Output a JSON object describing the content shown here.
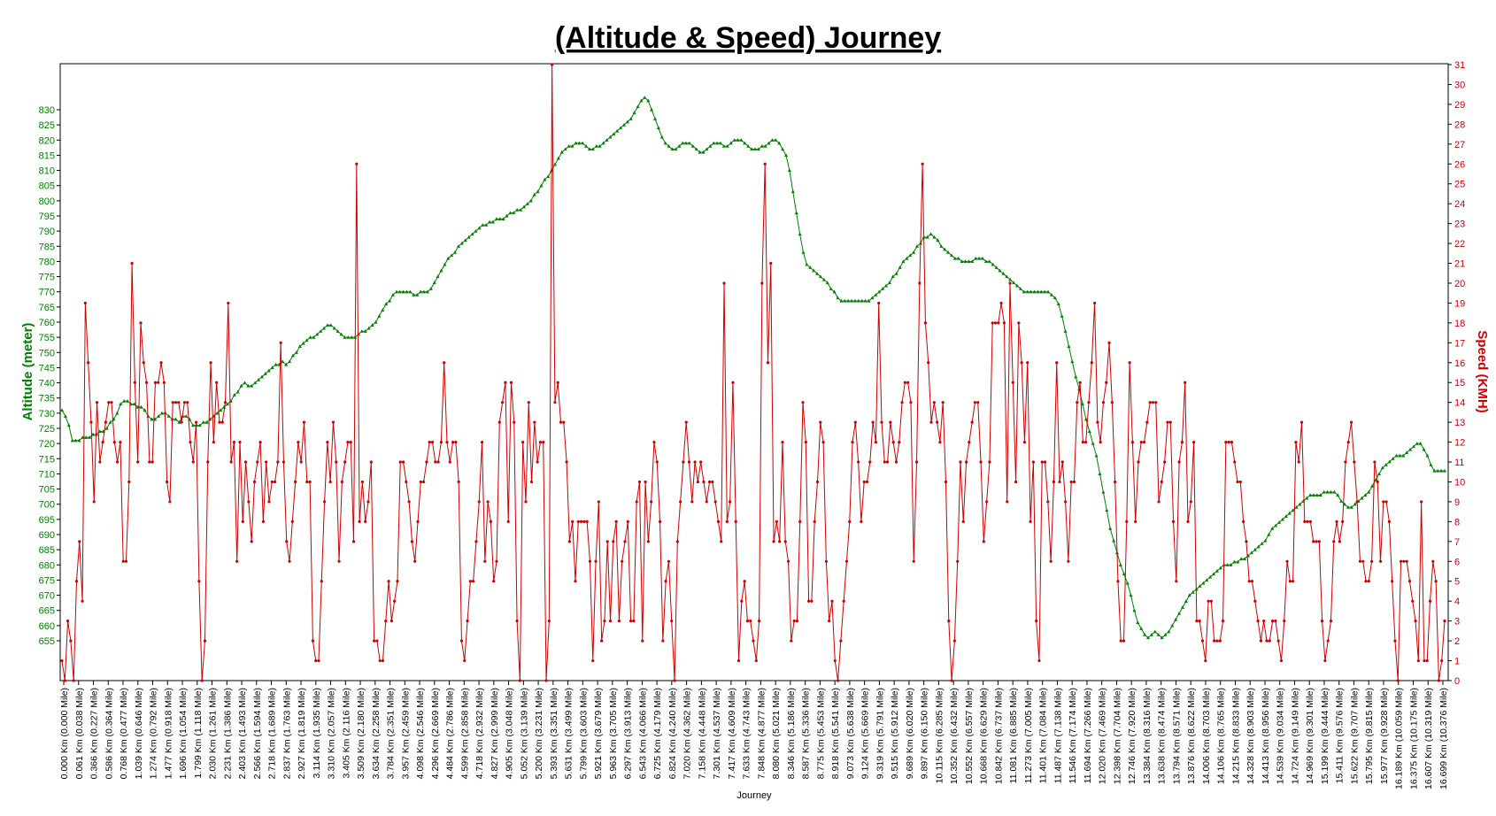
{
  "chart_data": {
    "type": "line",
    "title": "(Altitude & Speed) Journey",
    "xlabel": "Journey",
    "y_left_label": "Altitude (meter)",
    "y_right_label": "Speed (KMH)",
    "y_left_ticks": [
      655,
      660,
      665,
      670,
      675,
      680,
      685,
      690,
      695,
      700,
      705,
      710,
      715,
      720,
      725,
      730,
      735,
      740,
      745,
      750,
      755,
      760,
      765,
      770,
      775,
      780,
      785,
      790,
      795,
      800,
      805,
      810,
      815,
      820,
      825,
      830
    ],
    "y_right_ticks": [
      0,
      1,
      2,
      3,
      4,
      5,
      6,
      7,
      8,
      9,
      10,
      11,
      12,
      13,
      14,
      15,
      16,
      17,
      18,
      19,
      20,
      21,
      22,
      23,
      24,
      25,
      26,
      27,
      28,
      29,
      30,
      31
    ],
    "x_tick_labels": [
      "0.000 Km (0.000 Mile)",
      "0.061 Km (0.038 Mile)",
      "0.366 Km (0.227 Mile)",
      "0.586 Km (0.364 Mile)",
      "0.768 Km (0.477 Mile)",
      "1.039 Km (0.646 Mile)",
      "1.274 Km (0.792 Mile)",
      "1.477 Km (0.918 Mile)",
      "1.696 Km (1.054 Mile)",
      "1.799 Km (1.118 Mile)",
      "2.030 Km (1.261 Mile)",
      "2.231 Km (1.386 Mile)",
      "2.403 Km (1.493 Mile)",
      "2.566 Km (1.594 Mile)",
      "2.718 Km (1.689 Mile)",
      "2.837 Km (1.763 Mile)",
      "2.927 Km (1.819 Mile)",
      "3.114 Km (1.935 Mile)",
      "3.310 Km (2.057 Mile)",
      "3.405 Km (2.116 Mile)",
      "3.509 Km (2.180 Mile)",
      "3.634 Km (2.258 Mile)",
      "3.784 Km (2.351 Mile)",
      "3.957 Km (2.459 Mile)",
      "4.098 Km (2.546 Mile)",
      "4.296 Km (2.669 Mile)",
      "4.484 Km (2.786 Mile)",
      "4.599 Km (2.858 Mile)",
      "4.718 Km (2.932 Mile)",
      "4.827 Km (2.999 Mile)",
      "4.905 Km (3.048 Mile)",
      "5.052 Km (3.139 Mile)",
      "5.200 Km (3.231 Mile)",
      "5.393 Km (3.351 Mile)",
      "5.631 Km (3.499 Mile)",
      "5.799 Km (3.603 Mile)",
      "5.921 Km (3.679 Mile)",
      "5.963 Km (3.705 Mile)",
      "6.297 Km (3.913 Mile)",
      "6.543 Km (4.066 Mile)",
      "6.725 Km (4.179 Mile)",
      "6.824 Km (4.240 Mile)",
      "7.020 Km (4.362 Mile)",
      "7.158 Km (4.448 Mile)",
      "7.301 Km (4.537 Mile)",
      "7.417 Km (4.609 Mile)",
      "7.633 Km (4.743 Mile)",
      "7.848 Km (4.877 Mile)",
      "8.080 Km (5.021 Mile)",
      "8.346 Km (5.186 Mile)",
      "8.587 Km (5.336 Mile)",
      "8.775 Km (5.453 Mile)",
      "8.918 Km (5.541 Mile)",
      "9.073 Km (5.638 Mile)",
      "9.124 Km (5.669 Mile)",
      "9.319 Km (5.791 Mile)",
      "9.515 Km (5.912 Mile)",
      "9.689 Km (6.020 Mile)",
      "9.897 Km (6.150 Mile)",
      "10.115 Km (6.285 Mile)",
      "10.352 Km (6.432 Mile)",
      "10.552 Km (6.557 Mile)",
      "10.668 Km (6.629 Mile)",
      "10.842 Km (6.737 Mile)",
      "11.081 Km (6.885 Mile)",
      "11.273 Km (7.005 Mile)",
      "11.401 Km (7.084 Mile)",
      "11.487 Km (7.138 Mile)",
      "11.546 Km (7.174 Mile)",
      "11.694 Km (7.266 Mile)",
      "12.020 Km (7.469 Mile)",
      "12.398 Km (7.704 Mile)",
      "12.746 Km (7.920 Mile)",
      "13.384 Km (8.316 Mile)",
      "13.638 Km (8.474 Mile)",
      "13.794 Km (8.571 Mile)",
      "13.876 Km (8.622 Mile)",
      "14.006 Km (8.703 Mile)",
      "14.106 Km (8.765 Mile)",
      "14.215 Km (8.833 Mile)",
      "14.328 Km (8.903 Mile)",
      "14.413 Km (8.956 Mile)",
      "14.539 Km (9.034 Mile)",
      "14.724 Km (9.149 Mile)",
      "14.969 Km (9.301 Mile)",
      "15.199 Km (9.444 Mile)",
      "15.411 Km (9.576 Mile)",
      "15.622 Km (9.707 Mile)",
      "15.795 Km (9.815 Mile)",
      "15.977 Km (9.928 Mile)",
      "16.189 Km (10.059 Mile)",
      "16.375 Km (10.175 Mile)",
      "16.607 Km (10.319 Mile)",
      "16.699 Km (10.376 Mile)"
    ],
    "colors": {
      "altitude": "#008000",
      "speed": "#cc0000",
      "axis": "#000000"
    },
    "series": [
      {
        "name": "Altitude (meter)",
        "axis": "left",
        "values": [
          731,
          729,
          726,
          721,
          721,
          721,
          722,
          722,
          722,
          723,
          723,
          724,
          724,
          725,
          727,
          728,
          730,
          733,
          734,
          734,
          733,
          733,
          732,
          732,
          731,
          729,
          728,
          728,
          729,
          730,
          730,
          729,
          728,
          728,
          727,
          729,
          729,
          728,
          726,
          726,
          726,
          727,
          727,
          728,
          729,
          730,
          731,
          732,
          733,
          734,
          736,
          737,
          739,
          740,
          739,
          739,
          740,
          741,
          742,
          743,
          744,
          745,
          746,
          746,
          747,
          746,
          747,
          749,
          750,
          752,
          753,
          754,
          755,
          755,
          756,
          757,
          758,
          759,
          759,
          758,
          757,
          756,
          755,
          755,
          755,
          755,
          756,
          757,
          757,
          758,
          759,
          760,
          762,
          764,
          766,
          767,
          769,
          770,
          770,
          770,
          770,
          770,
          769,
          769,
          770,
          770,
          770,
          771,
          773,
          775,
          777,
          779,
          781,
          782,
          783,
          785,
          786,
          787,
          788,
          789,
          790,
          791,
          792,
          792,
          793,
          793,
          794,
          794,
          794,
          795,
          796,
          796,
          797,
          797,
          798,
          799,
          800,
          802,
          803,
          805,
          807,
          808,
          810,
          812,
          814,
          816,
          817,
          818,
          818,
          819,
          819,
          819,
          818,
          817,
          817,
          818,
          818,
          819,
          820,
          821,
          822,
          823,
          824,
          825,
          826,
          827,
          829,
          831,
          833,
          834,
          833,
          830,
          827,
          824,
          821,
          819,
          818,
          817,
          817,
          818,
          819,
          819,
          819,
          818,
          817,
          816,
          816,
          817,
          818,
          819,
          819,
          819,
          818,
          818,
          819,
          820,
          820,
          820,
          819,
          818,
          817,
          817,
          817,
          818,
          818,
          819,
          820,
          820,
          819,
          817,
          815,
          810,
          803,
          796,
          789,
          783,
          779,
          778,
          777,
          776,
          775,
          774,
          773,
          771,
          770,
          768,
          767,
          767,
          767,
          767,
          767,
          767,
          767,
          767,
          767,
          768,
          769,
          770,
          771,
          772,
          773,
          775,
          776,
          778,
          780,
          781,
          782,
          783,
          785,
          786,
          788,
          788,
          789,
          788,
          787,
          785,
          784,
          783,
          782,
          781,
          781,
          780,
          780,
          780,
          780,
          781,
          781,
          781,
          780,
          780,
          779,
          778,
          777,
          776,
          775,
          774,
          773,
          772,
          771,
          770,
          770,
          770,
          770,
          770,
          770,
          770,
          770,
          769,
          768,
          766,
          762,
          757,
          752,
          747,
          742,
          738,
          733,
          728,
          724,
          720,
          716,
          710,
          704,
          698,
          692,
          688,
          684,
          680,
          677,
          674,
          670,
          665,
          661,
          659,
          657,
          656,
          657,
          658,
          657,
          656,
          657,
          658,
          660,
          662,
          664,
          666,
          668,
          670,
          671,
          672,
          673,
          674,
          675,
          676,
          677,
          678,
          679,
          680,
          680,
          680,
          681,
          681,
          682,
          682,
          683,
          684,
          685,
          686,
          687,
          688,
          690,
          692,
          693,
          694,
          695,
          696,
          697,
          698,
          699,
          700,
          701,
          702,
          703,
          703,
          703,
          703,
          704,
          704,
          704,
          704,
          703,
          701,
          700,
          699,
          699,
          700,
          701,
          702,
          703,
          704,
          706,
          708,
          710,
          712,
          713,
          714,
          715,
          716,
          716,
          716,
          717,
          718,
          719,
          720,
          720,
          718,
          716,
          713,
          711,
          711,
          711,
          711
        ]
      },
      {
        "name": "Speed (KMH)",
        "axis": "right",
        "values": [
          1,
          0,
          3,
          2,
          0,
          5,
          7,
          4,
          19,
          16,
          13,
          9,
          14,
          11,
          12,
          13,
          14,
          14,
          12,
          11,
          12,
          6,
          6,
          10,
          21,
          15,
          11,
          18,
          16,
          15,
          11,
          11,
          15,
          15,
          16,
          15,
          10,
          9,
          14,
          14,
          14,
          13,
          14,
          14,
          12,
          11,
          13,
          5,
          0,
          2,
          11,
          16,
          12,
          15,
          13,
          13,
          14,
          19,
          11,
          12,
          6,
          12,
          8,
          11,
          9,
          7,
          10,
          11,
          12,
          8,
          11,
          9,
          10,
          10,
          11,
          17,
          11,
          7,
          6,
          8,
          10,
          12,
          11,
          13,
          10,
          10,
          2,
          1,
          1,
          5,
          9,
          12,
          10,
          13,
          11,
          6,
          10,
          11,
          12,
          12,
          7,
          26,
          8,
          10,
          8,
          9,
          11,
          2,
          2,
          1,
          1,
          3,
          5,
          3,
          4,
          5,
          11,
          11,
          10,
          9,
          7,
          6,
          8,
          10,
          10,
          11,
          12,
          12,
          11,
          11,
          12,
          16,
          12,
          11,
          12,
          12,
          10,
          2,
          1,
          3,
          5,
          5,
          7,
          9,
          12,
          6,
          9,
          8,
          5,
          6,
          13,
          14,
          15,
          8,
          15,
          13,
          3,
          0,
          12,
          9,
          14,
          10,
          13,
          11,
          12,
          12,
          0,
          3,
          31,
          14,
          15,
          13,
          13,
          11,
          7,
          8,
          5,
          8,
          8,
          8,
          8,
          6,
          1,
          6,
          9,
          2,
          3,
          7,
          3,
          7,
          8,
          3,
          6,
          7,
          8,
          3,
          3,
          9,
          10,
          2,
          10,
          7,
          9,
          12,
          11,
          8,
          2,
          5,
          6,
          3,
          0,
          7,
          9,
          11,
          13,
          11,
          9,
          11,
          10,
          11,
          10,
          9,
          10,
          10,
          9,
          8,
          7,
          20,
          8,
          9,
          15,
          8,
          1,
          4,
          5,
          3,
          3,
          2,
          1,
          3,
          20,
          26,
          16,
          21,
          7,
          8,
          7,
          12,
          7,
          6,
          2,
          3,
          3,
          8,
          14,
          12,
          4,
          4,
          8,
          10,
          13,
          12,
          6,
          3,
          4,
          1,
          0,
          2,
          4,
          6,
          8,
          12,
          13,
          11,
          8,
          10,
          10,
          11,
          13,
          12,
          19,
          13,
          11,
          11,
          13,
          12,
          11,
          12,
          14,
          15,
          15,
          14,
          6,
          11,
          20,
          26,
          18,
          16,
          13,
          14,
          13,
          12,
          14,
          10,
          3,
          0,
          2,
          6,
          11,
          8,
          11,
          12,
          13,
          14,
          14,
          11,
          7,
          9,
          11,
          18,
          18,
          18,
          19,
          18,
          9,
          20,
          15,
          10,
          18,
          16,
          12,
          16,
          8,
          11,
          3,
          1,
          11,
          11,
          9,
          6,
          10,
          16,
          10,
          11,
          9,
          6,
          10,
          10,
          14,
          15,
          12,
          12,
          14,
          16,
          19,
          13,
          12,
          14,
          15,
          17,
          14,
          10,
          5,
          2,
          2,
          8,
          16,
          12,
          8,
          11,
          12,
          12,
          13,
          14,
          14,
          14,
          9,
          10,
          11,
          13,
          13,
          8,
          5,
          11,
          12,
          15,
          8,
          9,
          12,
          3,
          3,
          2,
          1,
          4,
          4,
          2,
          2,
          2,
          3,
          12,
          12,
          12,
          11,
          10,
          10,
          8,
          7,
          5,
          5,
          4,
          3,
          2,
          3,
          2,
          2,
          3,
          3,
          2,
          1,
          3,
          6,
          5,
          5,
          12,
          11,
          13,
          8,
          8,
          8,
          7,
          7,
          7,
          3,
          1,
          2,
          3,
          7,
          8,
          7,
          8,
          11,
          12,
          13,
          11,
          9,
          6,
          6,
          5,
          5,
          6,
          11,
          10,
          6,
          9,
          9,
          8,
          5,
          2,
          0,
          6,
          6,
          6,
          5,
          4,
          3,
          1,
          9,
          1,
          1,
          4,
          6,
          5,
          0,
          1,
          3
        ]
      }
    ]
  }
}
